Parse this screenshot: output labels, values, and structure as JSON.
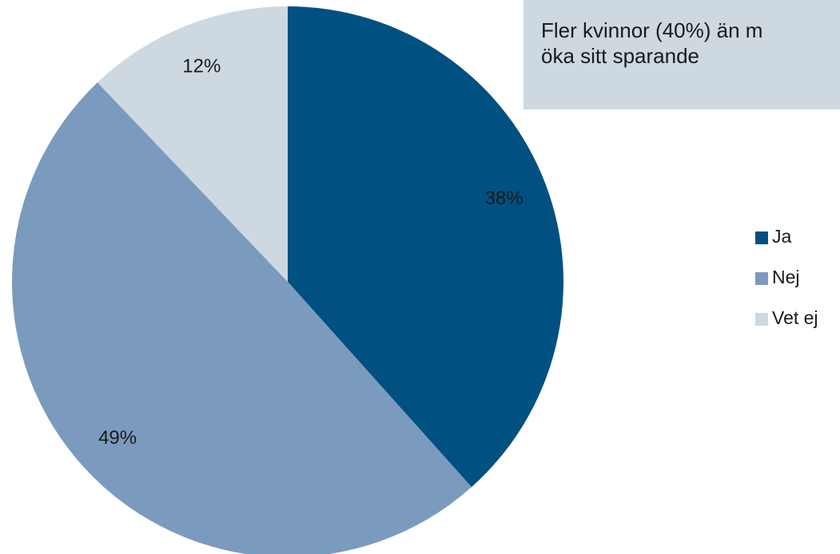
{
  "chart_data": {
    "type": "pie",
    "annotation": [
      "Fler kvinnor (40%) än m",
      "öka sitt sparande"
    ],
    "categories": [
      "Ja",
      "Nej",
      "Vet ej"
    ],
    "values": [
      38,
      49,
      12
    ],
    "value_labels": [
      "38%",
      "49%",
      "12%"
    ],
    "colors": [
      "#005082",
      "#7a9bbd",
      "#cdd8e0"
    ],
    "legend": "right"
  }
}
